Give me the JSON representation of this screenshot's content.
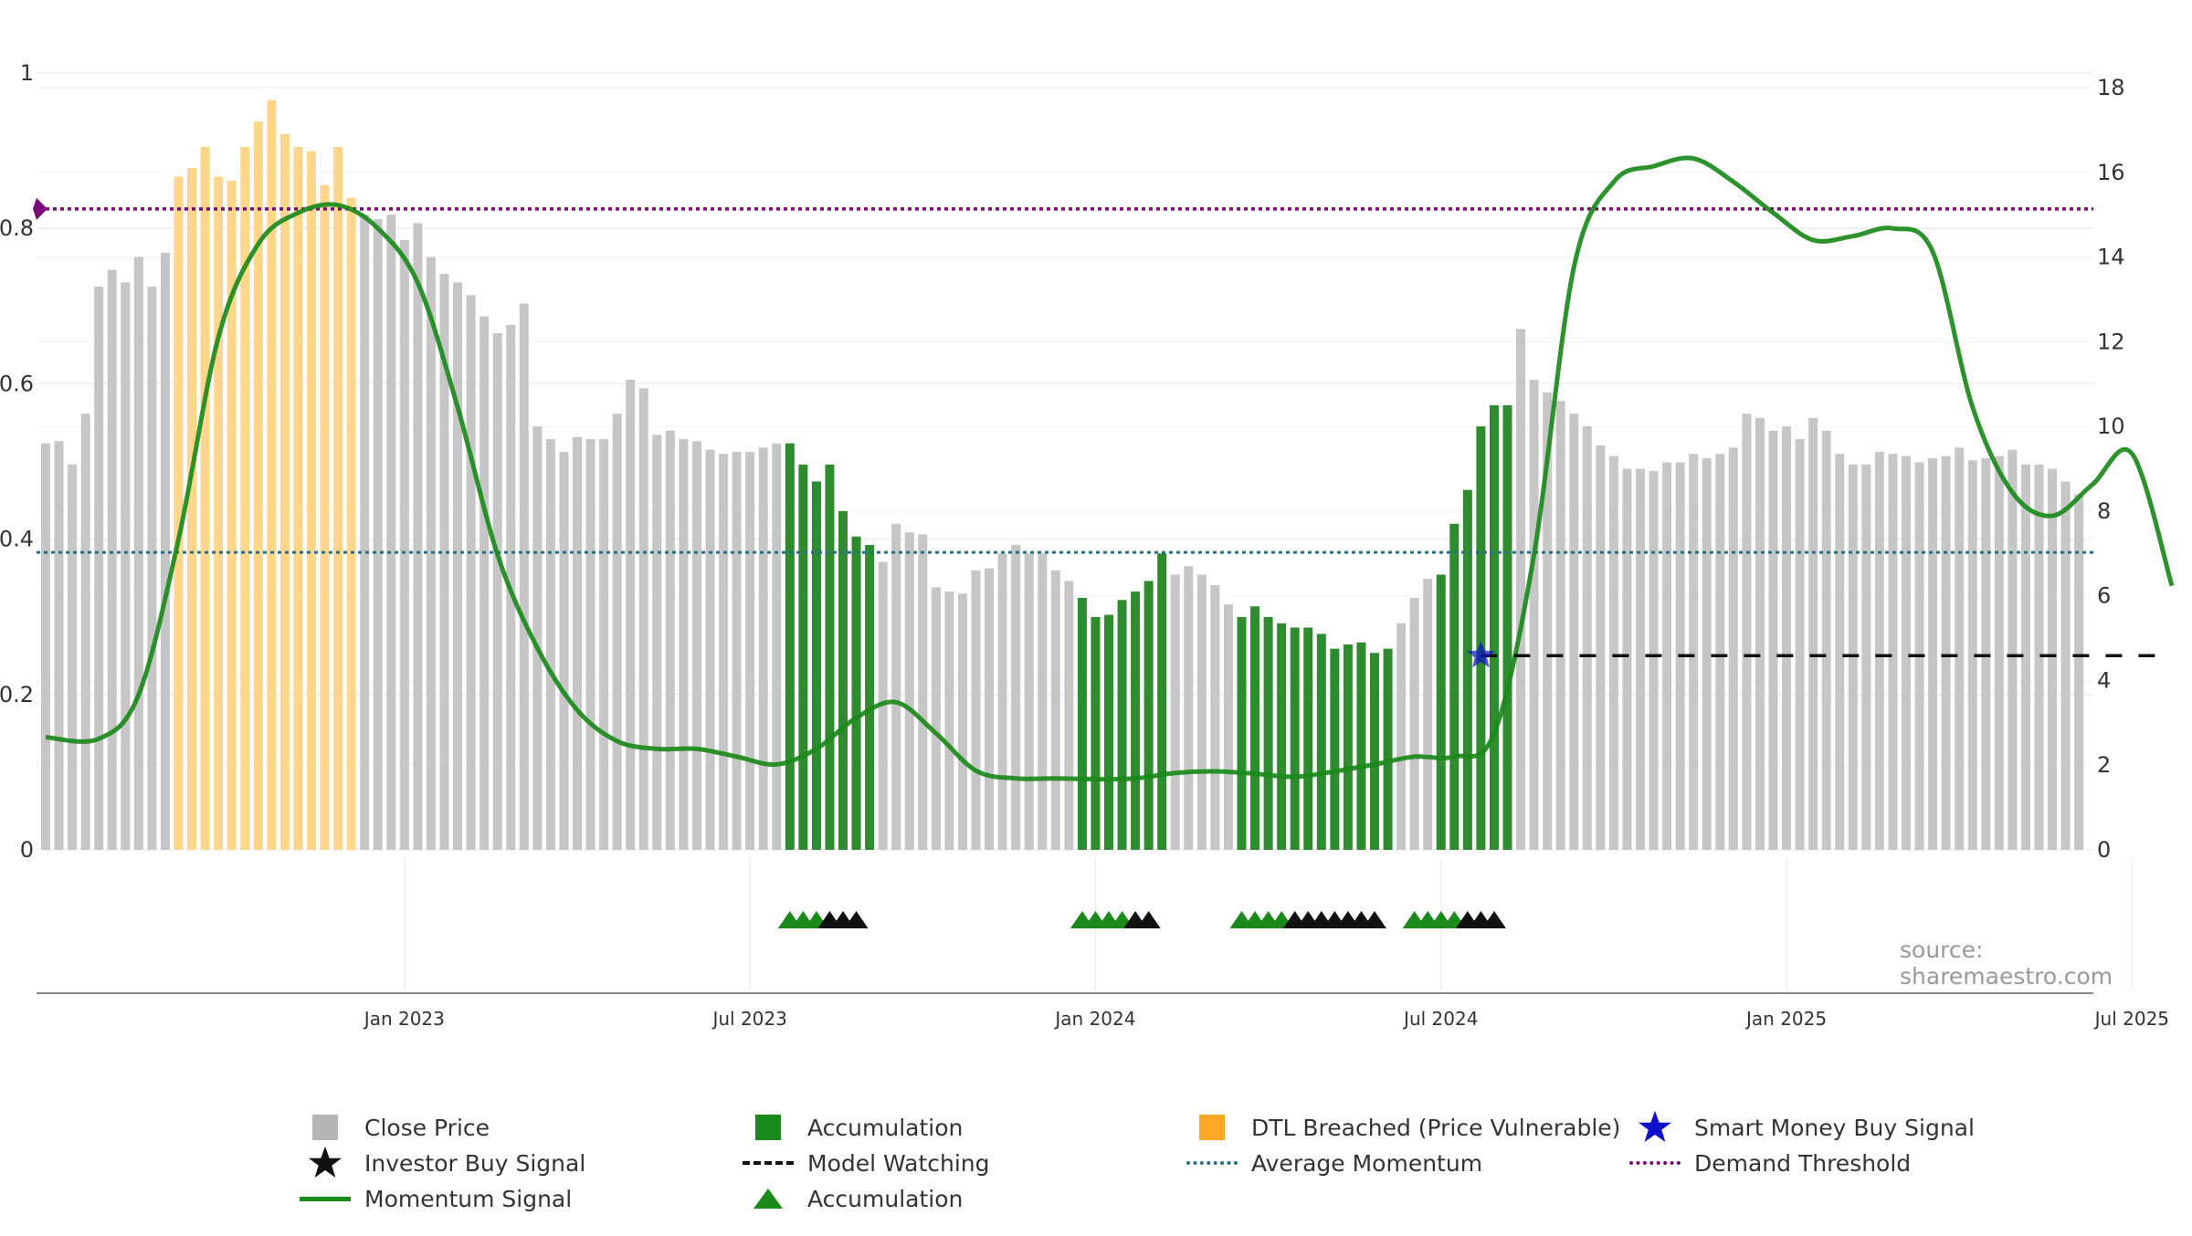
{
  "chart_data": {
    "type": "bar",
    "source_text": "source: sharemaestro.com",
    "x_ticks": [
      "Jan 2023",
      "Jul 2023",
      "Jan 2024",
      "Jul 2024",
      "Jan 2025",
      "Jul 2025"
    ],
    "x_tick_weeks": [
      27,
      53,
      79,
      105,
      131,
      157
    ],
    "left_axis": {
      "ticks": [
        "0",
        "0.2",
        "0.4",
        "0.6",
        "0.8",
        "1"
      ],
      "ylim": [
        0,
        1
      ]
    },
    "right_axis": {
      "ticks": [
        "0",
        "2",
        "4",
        "6",
        "8",
        "10",
        "12",
        "14",
        "16",
        "18"
      ],
      "ylim": [
        0,
        18
      ]
    },
    "close_prices": [
      9.6,
      9.65,
      9.1,
      10.3,
      13.3,
      13.7,
      13.4,
      14.0,
      13.3,
      14.1,
      15.9,
      16.1,
      16.6,
      15.9,
      15.8,
      16.6,
      17.2,
      17.7,
      16.9,
      16.6,
      16.5,
      15.7,
      16.6,
      15.4,
      15.0,
      14.9,
      15.0,
      14.4,
      14.8,
      14.0,
      13.6,
      13.4,
      13.1,
      12.6,
      12.2,
      12.4,
      12.9,
      10.0,
      9.7,
      9.4,
      9.75,
      9.7,
      9.7,
      10.3,
      11.1,
      10.9,
      9.8,
      9.9,
      9.7,
      9.65,
      9.45,
      9.35,
      9.4,
      9.4,
      9.5,
      9.6,
      9.6,
      9.1,
      8.7,
      9.1,
      8.0,
      7.4,
      7.2,
      6.8,
      7.7,
      7.5,
      7.45,
      6.2,
      6.1,
      6.05,
      6.6,
      6.65,
      7.0,
      7.2,
      7.0,
      7.0,
      6.6,
      6.35,
      5.95,
      5.5,
      5.55,
      5.9,
      6.1,
      6.35,
      7.0,
      6.5,
      6.7,
      6.5,
      6.25,
      5.8,
      5.5,
      5.75,
      5.5,
      5.35,
      5.25,
      5.25,
      5.1,
      4.75,
      4.85,
      4.9,
      4.65,
      4.75,
      5.35,
      5.95,
      6.4,
      6.5,
      7.7,
      8.5,
      10.0,
      10.5,
      10.5,
      12.3,
      11.1,
      10.8,
      10.6,
      10.3,
      10.0,
      9.55,
      9.3,
      9.0,
      9.0,
      8.95,
      9.15,
      9.15,
      9.35,
      9.25,
      9.35,
      9.5,
      10.3,
      10.2,
      9.9,
      10.0,
      9.7,
      10.2,
      9.9,
      9.35,
      9.1,
      9.1,
      9.4,
      9.35,
      9.3,
      9.15,
      9.25,
      9.3,
      9.5,
      9.2,
      9.25,
      9.3,
      9.45,
      9.1,
      9.1,
      9.0,
      8.7,
      8.4
    ],
    "accumulation_weeks": [
      56,
      57,
      58,
      59,
      60,
      61,
      62,
      78,
      79,
      80,
      81,
      82,
      83,
      84,
      90,
      91,
      92,
      93,
      94,
      95,
      96,
      97,
      98,
      99,
      100,
      101,
      105,
      106,
      107,
      108,
      109,
      110
    ],
    "dtl_breached_weeks": [
      10,
      11,
      12,
      13,
      14,
      15,
      16,
      17,
      18,
      19,
      20,
      21,
      22,
      23
    ],
    "momentum_weeks": [
      0,
      4,
      7,
      10,
      13,
      16,
      19,
      22,
      25,
      28,
      31,
      34,
      37,
      40,
      43,
      46,
      49,
      52,
      55,
      58,
      61,
      64,
      67,
      70,
      73,
      76,
      79,
      82,
      85,
      88,
      91,
      94,
      97,
      100,
      103,
      106,
      109,
      112,
      115,
      118,
      121,
      124,
      127,
      130,
      133,
      136,
      139,
      142,
      145,
      148,
      151,
      154,
      157,
      160
    ],
    "momentum_values": [
      0.145,
      0.143,
      0.2,
      0.4,
      0.66,
      0.78,
      0.82,
      0.83,
      0.8,
      0.73,
      0.57,
      0.38,
      0.26,
      0.18,
      0.14,
      0.13,
      0.13,
      0.12,
      0.11,
      0.13,
      0.17,
      0.19,
      0.15,
      0.102,
      0.092,
      0.092,
      0.091,
      0.092,
      0.099,
      0.101,
      0.098,
      0.094,
      0.101,
      0.11,
      0.12,
      0.12,
      0.15,
      0.38,
      0.75,
      0.86,
      0.88,
      0.89,
      0.86,
      0.82,
      0.785,
      0.79,
      0.8,
      0.77,
      0.57,
      0.46,
      0.43,
      0.47,
      0.51,
      0.34
    ],
    "average_momentum": 0.383,
    "demand_threshold": 0.825,
    "model_watching": {
      "from_week": 108,
      "to_week": 159,
      "value": 0.25
    },
    "smart_money_buy_week": 108,
    "signal_triangles": [
      {
        "week": 56,
        "kind": "accumulation"
      },
      {
        "week": 57,
        "kind": "accumulation"
      },
      {
        "week": 58,
        "kind": "accumulation"
      },
      {
        "week": 59,
        "kind": "investor"
      },
      {
        "week": 60,
        "kind": "investor"
      },
      {
        "week": 61,
        "kind": "investor"
      },
      {
        "week": 78,
        "kind": "accumulation"
      },
      {
        "week": 79,
        "kind": "accumulation"
      },
      {
        "week": 80,
        "kind": "accumulation"
      },
      {
        "week": 81,
        "kind": "accumulation"
      },
      {
        "week": 82,
        "kind": "investor"
      },
      {
        "week": 83,
        "kind": "investor"
      },
      {
        "week": 90,
        "kind": "accumulation"
      },
      {
        "week": 91,
        "kind": "accumulation"
      },
      {
        "week": 92,
        "kind": "accumulation"
      },
      {
        "week": 93,
        "kind": "accumulation"
      },
      {
        "week": 94,
        "kind": "investor"
      },
      {
        "week": 95,
        "kind": "investor"
      },
      {
        "week": 96,
        "kind": "investor"
      },
      {
        "week": 97,
        "kind": "investor"
      },
      {
        "week": 98,
        "kind": "investor"
      },
      {
        "week": 99,
        "kind": "investor"
      },
      {
        "week": 100,
        "kind": "investor"
      },
      {
        "week": 103,
        "kind": "accumulation"
      },
      {
        "week": 104,
        "kind": "accumulation"
      },
      {
        "week": 105,
        "kind": "accumulation"
      },
      {
        "week": 106,
        "kind": "accumulation"
      },
      {
        "week": 107,
        "kind": "investor"
      },
      {
        "week": 108,
        "kind": "investor"
      },
      {
        "week": 109,
        "kind": "investor"
      }
    ],
    "legend": [
      "Close Price",
      "Accumulation",
      "DTL Breached (Price Vulnerable)",
      "Smart Money Buy Signal",
      "Investor Buy Signal",
      "Model Watching",
      "Average Momentum",
      "Demand Threshold",
      "Momentum Signal",
      "Accumulation"
    ],
    "colors": {
      "close_bar": "#c6c6c6",
      "accumulation_bar": "#2e8b2e",
      "dtl_bar": "#ffd68a",
      "momentum_line": "#1a8a1a",
      "average_momentum": "#2a6f8a",
      "demand_threshold": "#7a0a7a",
      "smart_money": "#1010cc",
      "investor": "#111111",
      "accumulation_marker": "#1a8a1a",
      "dtl_swatch": "#ffa726",
      "close_swatch": "#b5b5b5"
    }
  }
}
